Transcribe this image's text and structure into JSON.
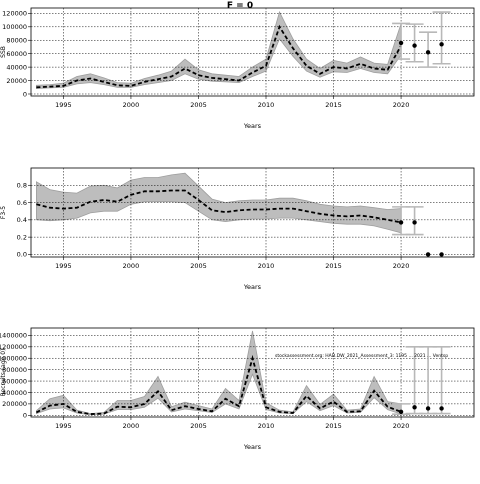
{
  "figure_title": "F = 0",
  "annotation": "stockassessment.org: HAD.DW_2021_Assessment_3: 1195 ... 2021 ... Ventsp",
  "chart_data": [
    {
      "type": "line",
      "id": "ssb",
      "title": "",
      "xlabel": "Years",
      "ylabel": "SSB",
      "xlim": [
        1992.6,
        2025.4
      ],
      "ylim": [
        -3000,
        128000
      ],
      "x_ticks": [
        1995,
        2000,
        2005,
        2010,
        2015,
        2020
      ],
      "y_ticks": [
        0,
        20000,
        40000,
        60000,
        80000,
        100000,
        120000
      ],
      "grid": true,
      "x": [
        1993,
        1994,
        1995,
        1996,
        1997,
        1998,
        1999,
        2000,
        2001,
        2002,
        2003,
        2004,
        2005,
        2006,
        2007,
        2008,
        2009,
        2010,
        2011,
        2012,
        2013,
        2014,
        2015,
        2016,
        2017,
        2018,
        2019,
        2020
      ],
      "estimate": [
        10000,
        11000,
        12000,
        20000,
        23000,
        18000,
        13000,
        12000,
        18000,
        22000,
        26000,
        38000,
        28000,
        24000,
        22000,
        20000,
        32000,
        42000,
        100000,
        68000,
        42000,
        30000,
        40000,
        38000,
        45000,
        38000,
        36000,
        72000
      ],
      "lower": [
        8000,
        9000,
        10000,
        15000,
        17000,
        14000,
        10000,
        10000,
        14000,
        17000,
        20000,
        30000,
        22000,
        19000,
        18000,
        17000,
        26000,
        34000,
        82000,
        56000,
        34000,
        25000,
        33000,
        32000,
        38000,
        32000,
        30000,
        58000
      ],
      "upper": [
        13000,
        14000,
        16000,
        26000,
        30000,
        24000,
        17000,
        16000,
        23000,
        28000,
        34000,
        52000,
        36000,
        30000,
        28000,
        26000,
        40000,
        52000,
        122000,
        82000,
        52000,
        38000,
        50000,
        46000,
        55000,
        46000,
        44000,
        105000
      ],
      "forecast": {
        "x": [
          2020,
          2021,
          2022,
          2023
        ],
        "estimate": [
          76000,
          72000,
          62000,
          74000
        ],
        "lower": [
          52000,
          48000,
          40000,
          45000
        ],
        "upper": [
          105000,
          104000,
          92000,
          122000
        ]
      }
    },
    {
      "type": "line",
      "id": "fbar",
      "title": "",
      "xlabel": "Years",
      "ylabel": "F3-5",
      "xlim": [
        1992.6,
        2025.4
      ],
      "ylim": [
        -0.03,
        1.0
      ],
      "x_ticks": [
        1995,
        2000,
        2005,
        2010,
        2015,
        2020
      ],
      "y_ticks": [
        0.0,
        0.2,
        0.4,
        0.6,
        0.8
      ],
      "grid": true,
      "x": [
        1993,
        1994,
        1995,
        1996,
        1997,
        1998,
        1999,
        2000,
        2001,
        2002,
        2003,
        2004,
        2005,
        2006,
        2007,
        2008,
        2009,
        2010,
        2011,
        2012,
        2013,
        2014,
        2015,
        2016,
        2017,
        2018,
        2019,
        2020
      ],
      "estimate": [
        0.58,
        0.54,
        0.53,
        0.54,
        0.61,
        0.63,
        0.61,
        0.69,
        0.73,
        0.73,
        0.74,
        0.74,
        0.63,
        0.51,
        0.49,
        0.51,
        0.52,
        0.52,
        0.53,
        0.53,
        0.5,
        0.47,
        0.45,
        0.44,
        0.45,
        0.43,
        0.4,
        0.37
      ],
      "lower": [
        0.4,
        0.39,
        0.4,
        0.42,
        0.48,
        0.5,
        0.5,
        0.58,
        0.61,
        0.61,
        0.61,
        0.6,
        0.5,
        0.4,
        0.38,
        0.4,
        0.41,
        0.41,
        0.42,
        0.42,
        0.4,
        0.38,
        0.36,
        0.35,
        0.35,
        0.33,
        0.29,
        0.25
      ],
      "upper": [
        0.84,
        0.75,
        0.72,
        0.71,
        0.79,
        0.8,
        0.77,
        0.86,
        0.89,
        0.89,
        0.92,
        0.94,
        0.79,
        0.64,
        0.6,
        0.62,
        0.63,
        0.63,
        0.65,
        0.65,
        0.62,
        0.58,
        0.56,
        0.55,
        0.56,
        0.54,
        0.52,
        0.53
      ],
      "forecast": {
        "x": [
          2020,
          2021,
          2022,
          2023
        ],
        "estimate": [
          0.37,
          0.37,
          0.0,
          0.0
        ],
        "lower": [
          0.23,
          0.23,
          0.0,
          0.0
        ],
        "upper": [
          0.55,
          0.55,
          0.0,
          0.0
        ]
      }
    },
    {
      "type": "line",
      "id": "recruits",
      "title": "",
      "xlabel": "Years",
      "ylabel": "Recruits (age 0)",
      "xlim": [
        1992.6,
        2025.4
      ],
      "ylim": [
        -30000,
        1530000
      ],
      "x_ticks": [
        1995,
        2000,
        2005,
        2010,
        2015,
        2020
      ],
      "y_ticks": [
        0,
        200000,
        400000,
        600000,
        800000,
        1000000,
        1200000,
        1400000
      ],
      "grid": true,
      "x": [
        1993,
        1994,
        1995,
        1996,
        1997,
        1998,
        1999,
        2000,
        2001,
        2002,
        2003,
        2004,
        2005,
        2006,
        2007,
        2008,
        2009,
        2010,
        2011,
        2012,
        2013,
        2014,
        2015,
        2016,
        2017,
        2018,
        2019,
        2020
      ],
      "estimate": [
        50000,
        170000,
        200000,
        60000,
        20000,
        30000,
        150000,
        140000,
        200000,
        420000,
        90000,
        160000,
        110000,
        70000,
        290000,
        160000,
        1000000,
        140000,
        60000,
        40000,
        340000,
        120000,
        240000,
        60000,
        70000,
        430000,
        150000,
        60000
      ],
      "lower": [
        30000,
        110000,
        130000,
        40000,
        10000,
        20000,
        100000,
        100000,
        140000,
        300000,
        60000,
        110000,
        80000,
        50000,
        200000,
        110000,
        720000,
        100000,
        40000,
        30000,
        240000,
        80000,
        170000,
        40000,
        50000,
        310000,
        100000,
        20000
      ],
      "upper": [
        80000,
        290000,
        350000,
        90000,
        30000,
        50000,
        260000,
        260000,
        330000,
        680000,
        150000,
        230000,
        170000,
        110000,
        470000,
        260000,
        1480000,
        220000,
        90000,
        60000,
        520000,
        190000,
        370000,
        90000,
        110000,
        680000,
        240000,
        200000
      ],
      "forecast": {
        "x": [
          2020,
          2021,
          2022,
          2023
        ],
        "estimate": [
          60000,
          140000,
          120000,
          120000
        ],
        "lower": [
          20000,
          30000,
          30000,
          30000
        ],
        "upper": [
          200000,
          1200000,
          1200000,
          1200000
        ]
      }
    }
  ]
}
